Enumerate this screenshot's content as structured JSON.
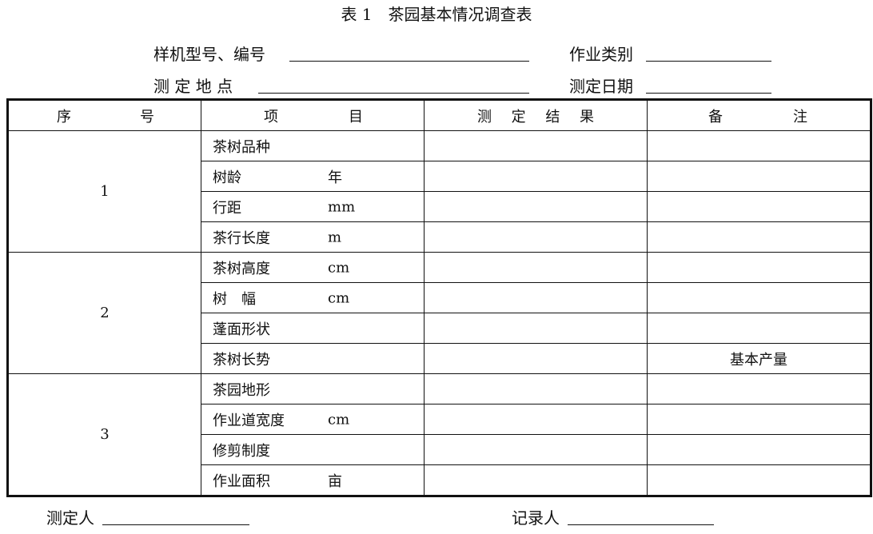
{
  "title": "表 1　茶园基本情况调查表",
  "header_fields": {
    "model_label": "样机型号、编号",
    "category_label": "作业类别",
    "location_label": "测 定 地 点",
    "date_label": "测定日期"
  },
  "table": {
    "columns": [
      [
        "序",
        "号"
      ],
      [
        "项",
        "目"
      ],
      [
        "测",
        "定",
        "结",
        "果"
      ],
      [
        "备",
        "注"
      ]
    ],
    "groups": [
      {
        "number": "1",
        "items": [
          {
            "name": "茶树品种",
            "unit": ""
          },
          {
            "name": "树龄",
            "unit": "年"
          },
          {
            "name": "行距",
            "unit": "mm"
          },
          {
            "name": "茶行长度",
            "unit": "m"
          }
        ]
      },
      {
        "number": "2",
        "items": [
          {
            "name": "茶树高度",
            "unit": "cm"
          },
          {
            "name": "树　幅",
            "unit": "cm"
          },
          {
            "name": "蓬面形状",
            "unit": ""
          },
          {
            "name": "茶树长势",
            "unit": "",
            "note": "基本产量"
          }
        ]
      },
      {
        "number": "3",
        "items": [
          {
            "name": "茶园地形",
            "unit": ""
          },
          {
            "name": "作业道宽度",
            "unit": "cm"
          },
          {
            "name": "修剪制度",
            "unit": ""
          },
          {
            "name": "作业面积",
            "unit": "亩"
          }
        ]
      }
    ]
  },
  "footer": {
    "measurer_label": "测定人",
    "recorder_label": "记录人"
  }
}
